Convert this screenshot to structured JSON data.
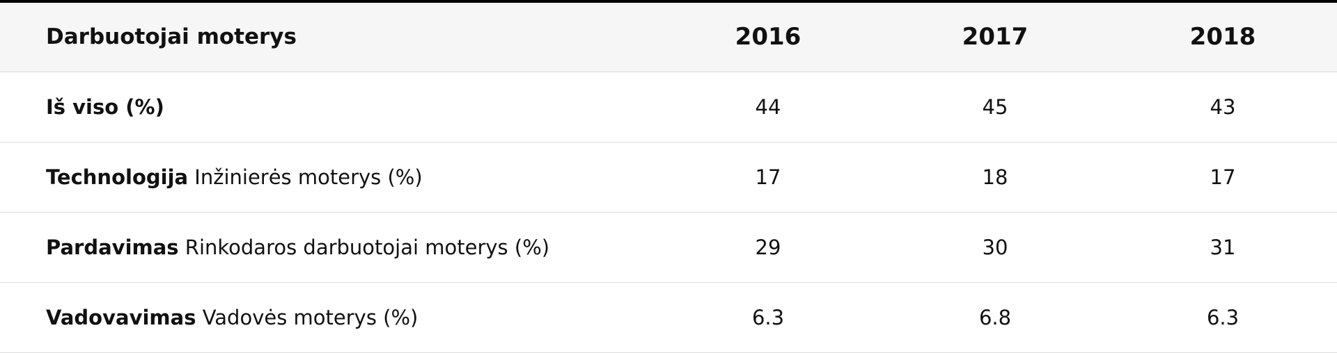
{
  "table": {
    "header": [
      "Darbuotojai moterys",
      "2016",
      "2017",
      "2018"
    ],
    "rows": [
      {
        "category": "Iš viso (%)",
        "values": [
          44,
          45,
          43
        ]
      },
      {
        "category": "Technologija",
        "detail": "Inžinierės moterys (%)",
        "values": [
          17,
          18,
          17
        ]
      },
      {
        "category": "Pardavimas",
        "detail": "Rinkodaros darbuotojai moterys (%)",
        "values": [
          29,
          30,
          31
        ]
      },
      {
        "category": "Vadovavimas",
        "detail": "Vadovės moterys (%)",
        "values": [
          6.3,
          6.8,
          6.3
        ]
      }
    ]
  }
}
